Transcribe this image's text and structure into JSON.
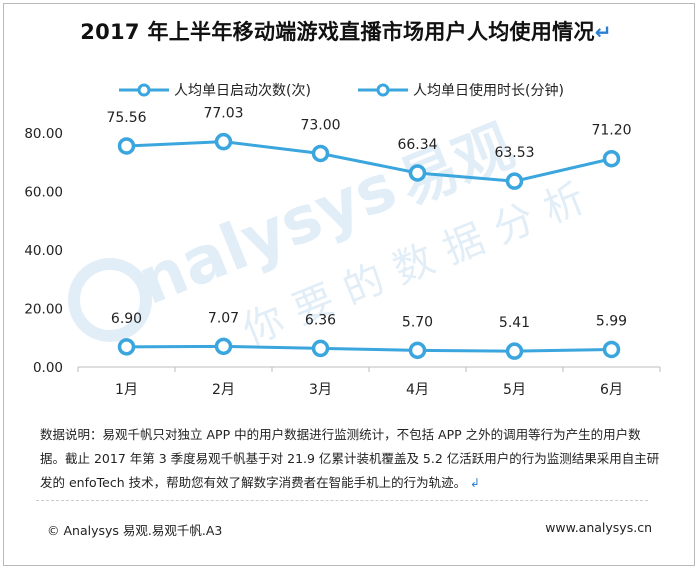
{
  "title": "2017 年上半年移动端游戏直播市场用户人均使用情况",
  "return_glyph": "↵",
  "chart_data": {
    "type": "line",
    "categories": [
      "1月",
      "2月",
      "3月",
      "4月",
      "5月",
      "6月"
    ],
    "series": [
      {
        "name": "人均单日启动次数(次)",
        "values": [
          6.9,
          7.07,
          6.36,
          5.7,
          5.41,
          5.99
        ],
        "labels": [
          "6.90",
          "7.07",
          "6.36",
          "5.70",
          "5.41",
          "5.99"
        ]
      },
      {
        "name": "人均单日使用时长(分钟)",
        "values": [
          75.56,
          77.03,
          73.0,
          66.34,
          63.53,
          71.2
        ],
        "labels": [
          "75.56",
          "77.03",
          "73.00",
          "66.34",
          "63.53",
          "71.20"
        ]
      }
    ],
    "y_ticks": [
      "0.00",
      "20.00",
      "40.00",
      "60.00",
      "80.00"
    ],
    "ylim": [
      0,
      80
    ],
    "grid": false,
    "legend_position": "top",
    "colors": {
      "series_line": "#3aa6dd",
      "marker_fill": "#ffffff",
      "axis": "#bdbdbd"
    }
  },
  "watermark": {
    "brand": "nalysys",
    "brand_cn": "易观",
    "slogan": "你要的数据分析"
  },
  "note_text": "数据说明：易观千帆只对独立 APP 中的用户数据进行监测统计，不包括 APP 之外的调用等行为产生的用户数据。截止 2017 年第 3 季度易观千帆基于对 21.9 亿累计装机覆盖及 5.2 亿活跃用户的行为监测结果采用自主研发的 enfoTech 技术，帮助您有效了解数字消费者在智能手机上的行为轨迹。",
  "footer": {
    "left": "© Analysys 易观.易观千帆.A3",
    "right": "www.analysys.cn"
  }
}
